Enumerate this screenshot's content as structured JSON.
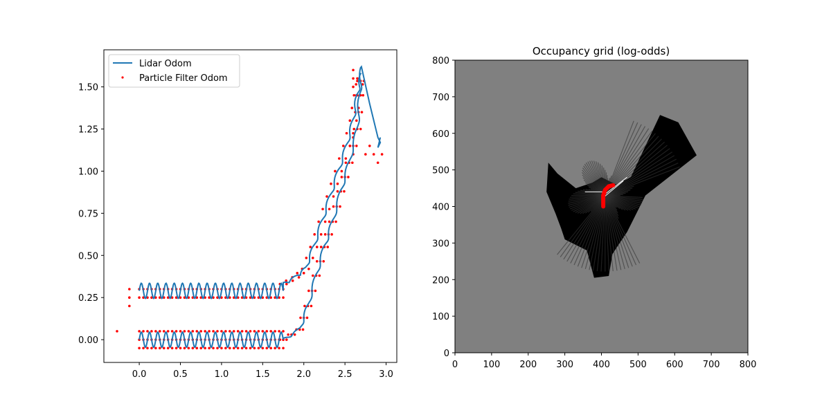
{
  "colors": {
    "lidar_line": "#1f77b4",
    "pf_points": "#ff0000",
    "grid_background": "#808080",
    "grid_occupied": "#000000",
    "grid_free": "#ffffff"
  },
  "chart_data": [
    {
      "type": "line",
      "title": "",
      "xlabel": "",
      "ylabel": "",
      "xlim": [
        -0.43,
        3.13
      ],
      "ylim": [
        -0.135,
        1.72
      ],
      "xticks": [
        0.0,
        0.5,
        1.0,
        1.5,
        2.0,
        2.5,
        3.0
      ],
      "yticks": [
        0.0,
        0.25,
        0.5,
        0.75,
        1.0,
        1.25,
        1.5
      ],
      "xtick_labels": [
        "0.0",
        "0.5",
        "1.0",
        "1.5",
        "2.0",
        "2.5",
        "3.0"
      ],
      "ytick_labels": [
        "0.00",
        "0.25",
        "0.50",
        "0.75",
        "1.00",
        "1.25",
        "1.50"
      ],
      "grid": false,
      "legend": {
        "position": "top-left",
        "entries": [
          "Lidar Odom",
          "Particle Filter Odom"
        ]
      },
      "series": [
        {
          "name": "Lidar Odom",
          "kind": "line",
          "description_points": {
            "lower_leg": {
              "x_range": [
                0.0,
                1.75
              ],
              "y_center": 0.0,
              "y_amp": 0.045,
              "period": 0.1
            },
            "lower_bend": [
              [
                1.75,
                0.0
              ],
              [
                1.95,
                0.06
              ],
              [
                2.05,
                0.2
              ],
              [
                2.15,
                0.38
              ],
              [
                2.25,
                0.55
              ],
              [
                2.35,
                0.7
              ],
              [
                2.45,
                0.88
              ],
              [
                2.55,
                1.05
              ],
              [
                2.65,
                1.25
              ],
              [
                2.68,
                1.45
              ],
              [
                2.7,
                1.62
              ]
            ],
            "upper_leg": {
              "x_range": [
                0.0,
                1.75
              ],
              "y_center": 0.29,
              "y_amp": 0.045,
              "period": 0.1
            },
            "upper_bend": [
              [
                1.75,
                0.33
              ],
              [
                1.9,
                0.37
              ],
              [
                2.02,
                0.42
              ],
              [
                2.12,
                0.55
              ],
              [
                2.22,
                0.7
              ],
              [
                2.32,
                0.85
              ],
              [
                2.42,
                1.0
              ],
              [
                2.52,
                1.15
              ],
              [
                2.6,
                1.3
              ],
              [
                2.65,
                1.45
              ],
              [
                2.7,
                1.58
              ]
            ],
            "return_leg": [
              [
                2.7,
                1.62
              ],
              [
                2.8,
                1.4
              ],
              [
                2.9,
                1.2
              ],
              [
                2.93,
                1.17
              ],
              [
                2.9,
                1.14
              ],
              [
                2.93,
                1.2
              ]
            ]
          }
        },
        {
          "name": "Particle Filter Odom",
          "kind": "scatter",
          "description_points": {
            "lower_rows_y": [
              -0.05,
              0.0,
              0.05
            ],
            "upper_rows_y": [
              0.25,
              0.3
            ],
            "x_step": 0.05,
            "outliers": [
              [
                -0.27,
                0.05
              ],
              [
                -0.12,
                0.25
              ],
              [
                -0.12,
                0.2
              ],
              [
                -0.12,
                0.3
              ]
            ],
            "top_cluster": [
              [
                2.6,
                1.6
              ],
              [
                2.6,
                1.55
              ],
              [
                2.6,
                1.5
              ],
              [
                2.65,
                1.55
              ],
              [
                2.65,
                1.45
              ],
              [
                2.75,
                1.1
              ],
              [
                2.8,
                1.15
              ],
              [
                2.85,
                1.1
              ],
              [
                2.9,
                1.05
              ],
              [
                2.95,
                1.1
              ],
              [
                2.6,
                1.2
              ],
              [
                2.6,
                1.15
              ],
              [
                2.6,
                1.1
              ]
            ]
          }
        }
      ]
    },
    {
      "type": "heatmap",
      "title": "Occupancy grid (log-odds)",
      "xlabel": "",
      "ylabel": "",
      "xlim": [
        0,
        800
      ],
      "ylim": [
        0,
        800
      ],
      "xticks": [
        0,
        100,
        200,
        300,
        400,
        500,
        600,
        700,
        800
      ],
      "yticks": [
        0,
        100,
        200,
        300,
        400,
        500,
        600,
        700,
        800
      ],
      "xtick_labels": [
        "0",
        "100",
        "200",
        "300",
        "400",
        "500",
        "600",
        "700",
        "800"
      ],
      "ytick_labels": [
        "0",
        "100",
        "200",
        "300",
        "400",
        "500",
        "600",
        "700",
        "800"
      ],
      "grid": false,
      "regions": {
        "occupied_blob": [
          [
            255,
            520
          ],
          [
            280,
            490
          ],
          [
            330,
            450
          ],
          [
            375,
            465
          ],
          [
            400,
            480
          ],
          [
            440,
            460
          ],
          [
            480,
            480
          ],
          [
            560,
            650
          ],
          [
            610,
            630
          ],
          [
            660,
            540
          ],
          [
            520,
            430
          ],
          [
            470,
            330
          ],
          [
            430,
            270
          ],
          [
            420,
            210
          ],
          [
            380,
            205
          ],
          [
            360,
            280
          ],
          [
            300,
            310
          ],
          [
            290,
            340
          ],
          [
            275,
            380
          ],
          [
            250,
            440
          ]
        ],
        "robot_path": [
          [
            405,
            400
          ],
          [
            405,
            430
          ],
          [
            410,
            445
          ],
          [
            420,
            455
          ],
          [
            432,
            458
          ]
        ]
      }
    }
  ]
}
